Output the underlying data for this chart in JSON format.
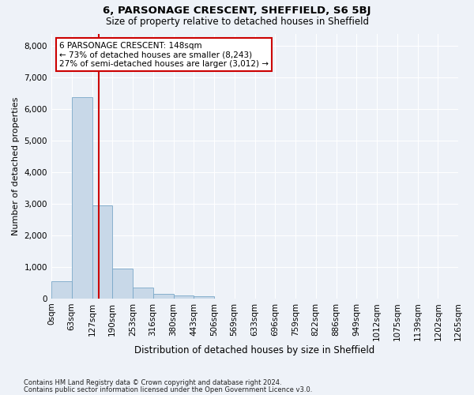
{
  "title": "6, PARSONAGE CRESCENT, SHEFFIELD, S6 5BJ",
  "subtitle": "Size of property relative to detached houses in Sheffield",
  "xlabel": "Distribution of detached houses by size in Sheffield",
  "ylabel": "Number of detached properties",
  "footer_line1": "Contains HM Land Registry data © Crown copyright and database right 2024.",
  "footer_line2": "Contains public sector information licensed under the Open Government Licence v3.0.",
  "annotation_line1": "6 PARSONAGE CRESCENT: 148sqm",
  "annotation_line2": "← 73% of detached houses are smaller (8,243)",
  "annotation_line3": "27% of semi-detached houses are larger (3,012) →",
  "property_size_sqm": 148,
  "bar_color": "#c8d8e8",
  "bar_edge_color": "#7aA8c8",
  "vertical_line_color": "#cc0000",
  "annotation_box_color": "#cc0000",
  "background_color": "#eef2f8",
  "bin_labels": [
    "0sqm",
    "63sqm",
    "127sqm",
    "190sqm",
    "253sqm",
    "316sqm",
    "380sqm",
    "443sqm",
    "506sqm",
    "569sqm",
    "633sqm",
    "696sqm",
    "759sqm",
    "822sqm",
    "886sqm",
    "949sqm",
    "1012sqm",
    "1075sqm",
    "1139sqm",
    "1202sqm",
    "1265sqm"
  ],
  "bin_edges": [
    0,
    63,
    127,
    190,
    253,
    316,
    380,
    443,
    506,
    569,
    633,
    696,
    759,
    822,
    886,
    949,
    1012,
    1075,
    1139,
    1202,
    1265
  ],
  "bar_heights": [
    550,
    6380,
    2960,
    960,
    340,
    155,
    100,
    65,
    0,
    0,
    0,
    0,
    0,
    0,
    0,
    0,
    0,
    0,
    0,
    0
  ],
  "ylim": [
    0,
    8400
  ],
  "yticks": [
    0,
    1000,
    2000,
    3000,
    4000,
    5000,
    6000,
    7000,
    8000
  ]
}
